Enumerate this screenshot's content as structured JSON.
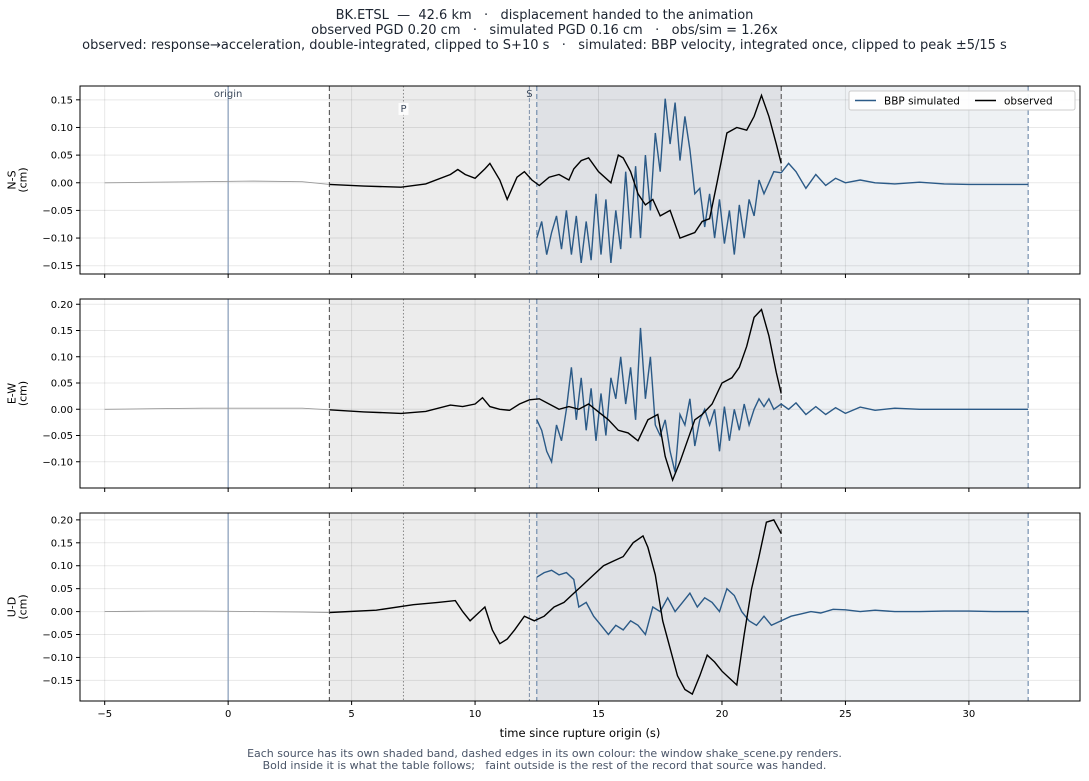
{
  "header": {
    "line1": "BK.ETSL  —  42.6 km   ·   displacement handed to the animation",
    "line2": "observed PGD 0.20 cm   ·   simulated PGD 0.16 cm   ·   obs/sim = 1.26x",
    "line3": "observed: response→acceleration, double-integrated, clipped to S+10 s   ·   simulated: BBP velocity, integrated once, clipped to peak ±5/15 s"
  },
  "footer": {
    "line1": "Each source has its own shaded band, dashed edges in its own colour: the window shake_scene.py renders.",
    "line2": "Bold inside it is what the table follows;   faint outside is the rest of the record that source was handed."
  },
  "colors": {
    "simulated": "#2b5a87",
    "observed": "#000000",
    "band_observed": "#ececec",
    "band_simulated": "#eef1f4",
    "band_overlap": "#dfe1e5",
    "origin_line": "#8fa3bd"
  },
  "chart_data": {
    "type": "line",
    "xlabel": "time since rupture origin (s)",
    "xlim": [
      -6,
      34.5
    ],
    "xticks": [
      -5,
      0,
      5,
      10,
      15,
      20,
      25,
      30
    ],
    "legend": {
      "placement": "top-right",
      "entries": [
        "BBP simulated",
        "observed"
      ]
    },
    "grid": true,
    "markers": {
      "origin": {
        "t": 0,
        "label": "origin"
      },
      "P": {
        "t": 7.1,
        "label": "P"
      },
      "S": {
        "t": 12.2,
        "label": "S"
      }
    },
    "windows": {
      "observed": [
        4.1,
        22.4
      ],
      "simulated": [
        12.5,
        32.4
      ]
    },
    "panels": [
      {
        "ylabel": "N-S\n(cm)",
        "ylim": [
          -0.165,
          0.175
        ],
        "yticks": [
          -0.15,
          -0.1,
          -0.05,
          0.0,
          0.05,
          0.1,
          0.15
        ],
        "observed": {
          "t": [
            -5,
            -3,
            -1,
            1,
            3,
            4.1,
            5.5,
            7,
            8,
            9,
            9.3,
            9.6,
            10,
            10.4,
            10.6,
            11,
            11.3,
            11.7,
            12,
            12.3,
            12.6,
            13,
            13.4,
            13.8,
            14,
            14.3,
            14.6,
            15,
            15.5,
            15.8,
            16,
            16.3,
            16.6,
            16.9,
            17.2,
            17.5,
            17.9,
            18.3,
            18.6,
            18.9,
            19.2,
            19.5,
            19.8,
            20.2,
            20.6,
            21,
            21.3,
            21.6,
            21.9,
            22.2,
            22.4
          ],
          "y": [
            0,
            0.001,
            0.002,
            0.003,
            0.002,
            -0.003,
            -0.006,
            -0.008,
            -0.002,
            0.015,
            0.024,
            0.015,
            0.008,
            0.025,
            0.035,
            0.005,
            -0.03,
            0.01,
            0.02,
            0.005,
            -0.005,
            0.01,
            0.015,
            0.005,
            0.025,
            0.04,
            0.045,
            0.02,
            0.0,
            0.05,
            0.045,
            0.02,
            -0.02,
            -0.04,
            -0.03,
            -0.06,
            -0.05,
            -0.1,
            -0.095,
            -0.09,
            -0.07,
            -0.065,
            0.0,
            0.09,
            0.1,
            0.095,
            0.12,
            0.158,
            0.12,
            0.07,
            0.035
          ]
        },
        "simulated": {
          "t": [
            12.5,
            12.7,
            12.9,
            13.1,
            13.3,
            13.5,
            13.7,
            13.9,
            14.1,
            14.3,
            14.5,
            14.7,
            14.9,
            15.1,
            15.3,
            15.5,
            15.7,
            15.9,
            16.1,
            16.3,
            16.5,
            16.7,
            16.9,
            17.1,
            17.3,
            17.5,
            17.7,
            17.9,
            18.1,
            18.3,
            18.5,
            18.7,
            18.9,
            19.1,
            19.3,
            19.5,
            19.7,
            19.9,
            20.1,
            20.3,
            20.5,
            20.7,
            20.9,
            21.1,
            21.3,
            21.5,
            21.7,
            21.9,
            22.1,
            22.4,
            22.7,
            23,
            23.4,
            23.8,
            24.2,
            24.6,
            25,
            25.6,
            26.2,
            27,
            28,
            29,
            30,
            31,
            32,
            32.4
          ],
          "y": [
            -0.1,
            -0.07,
            -0.13,
            -0.09,
            -0.06,
            -0.12,
            -0.05,
            -0.13,
            -0.06,
            -0.145,
            -0.07,
            -0.14,
            -0.02,
            -0.13,
            -0.03,
            -0.145,
            -0.05,
            -0.12,
            0.02,
            -0.1,
            0.03,
            -0.1,
            0.05,
            -0.05,
            0.09,
            0.02,
            0.152,
            0.07,
            0.145,
            0.04,
            0.12,
            0.06,
            -0.02,
            -0.01,
            -0.08,
            -0.02,
            -0.1,
            -0.03,
            -0.11,
            -0.05,
            -0.13,
            -0.04,
            -0.1,
            -0.03,
            -0.06,
            0.005,
            -0.02,
            0.0,
            0.02,
            0.018,
            0.035,
            0.02,
            -0.01,
            0.015,
            -0.005,
            0.008,
            0.0,
            0.005,
            0.0,
            -0.002,
            0.001,
            -0.002,
            -0.003,
            -0.003,
            -0.003,
            -0.003
          ]
        }
      },
      {
        "ylabel": "E-W\n(cm)",
        "ylim": [
          -0.15,
          0.21
        ],
        "yticks": [
          -0.1,
          -0.05,
          0.0,
          0.05,
          0.1,
          0.15,
          0.2
        ],
        "observed": {
          "t": [
            -5,
            -3,
            -1,
            1,
            3,
            4.1,
            5.5,
            7,
            8,
            9,
            9.5,
            10,
            10.3,
            10.6,
            11,
            11.4,
            11.8,
            12.2,
            12.6,
            13,
            13.4,
            13.8,
            14.2,
            14.6,
            15,
            15.4,
            15.8,
            16.2,
            16.6,
            17,
            17.4,
            17.7,
            18,
            18.3,
            18.6,
            18.9,
            19.2,
            19.6,
            20,
            20.4,
            20.7,
            21,
            21.3,
            21.6,
            21.9,
            22.2,
            22.4
          ],
          "y": [
            0,
            0.001,
            0.002,
            0.002,
            0.002,
            -0.001,
            -0.005,
            -0.008,
            -0.004,
            0.008,
            0.005,
            0.01,
            0.022,
            0.005,
            0.0,
            -0.002,
            0.01,
            0.018,
            0.02,
            0.01,
            0.0,
            0.005,
            0.0,
            0.01,
            -0.005,
            -0.02,
            -0.04,
            -0.045,
            -0.06,
            -0.02,
            -0.01,
            -0.09,
            -0.135,
            -0.1,
            -0.06,
            -0.02,
            -0.01,
            0.01,
            0.05,
            0.06,
            0.08,
            0.12,
            0.175,
            0.19,
            0.14,
            0.07,
            0.03
          ]
        },
        "simulated": {
          "t": [
            12.5,
            12.7,
            12.9,
            13.1,
            13.3,
            13.5,
            13.7,
            13.9,
            14.1,
            14.3,
            14.5,
            14.7,
            14.9,
            15.1,
            15.3,
            15.5,
            15.7,
            15.9,
            16.1,
            16.3,
            16.5,
            16.7,
            16.9,
            17.1,
            17.3,
            17.5,
            17.7,
            17.9,
            18.1,
            18.3,
            18.5,
            18.7,
            18.9,
            19.1,
            19.3,
            19.5,
            19.7,
            19.9,
            20.1,
            20.3,
            20.5,
            20.7,
            20.9,
            21.1,
            21.3,
            21.5,
            21.7,
            21.9,
            22.1,
            22.4,
            22.7,
            23,
            23.4,
            23.8,
            24.2,
            24.6,
            25,
            25.6,
            26.2,
            27,
            28,
            29,
            30,
            31,
            32,
            32.4
          ],
          "y": [
            -0.02,
            -0.04,
            -0.08,
            -0.1,
            -0.03,
            -0.06,
            0.0,
            0.08,
            -0.02,
            0.06,
            -0.04,
            0.04,
            -0.06,
            0.03,
            -0.05,
            0.06,
            0.02,
            0.1,
            0.01,
            0.08,
            -0.02,
            0.155,
            0.02,
            0.1,
            -0.03,
            -0.05,
            -0.02,
            -0.08,
            -0.12,
            -0.01,
            -0.03,
            0.02,
            -0.07,
            -0.02,
            0.0,
            -0.03,
            0.0,
            -0.08,
            0.005,
            -0.06,
            0.0,
            -0.04,
            0.01,
            -0.03,
            0.0,
            0.02,
            0.005,
            0.02,
            0.0,
            0.01,
            0.0,
            0.012,
            -0.01,
            0.005,
            -0.01,
            0.003,
            -0.008,
            0.004,
            -0.002,
            0.002,
            0.0,
            0.0,
            0.0,
            0.0,
            0.0,
            0.0
          ]
        }
      },
      {
        "ylabel": "U-D\n(cm)",
        "ylim": [
          -0.195,
          0.215
        ],
        "yticks": [
          -0.15,
          -0.1,
          -0.05,
          0.0,
          0.05,
          0.1,
          0.15,
          0.2
        ],
        "observed": {
          "t": [
            -5,
            -3,
            -1,
            1,
            3,
            4.1,
            6,
            7.5,
            8.5,
            9.2,
            9.5,
            9.8,
            10.1,
            10.4,
            10.7,
            11,
            11.3,
            11.6,
            12,
            12.4,
            12.8,
            13.2,
            13.6,
            14,
            14.4,
            14.8,
            15.2,
            15.6,
            16,
            16.4,
            16.8,
            17,
            17.3,
            17.6,
            17.9,
            18.2,
            18.5,
            18.8,
            19.1,
            19.4,
            19.7,
            20,
            20.3,
            20.6,
            20.9,
            21.2,
            21.5,
            21.8,
            22.1,
            22.4
          ],
          "y": [
            0,
            0.001,
            0.001,
            0.0,
            -0.001,
            -0.002,
            0.003,
            0.015,
            0.02,
            0.024,
            0.0,
            -0.02,
            -0.005,
            0.01,
            -0.04,
            -0.07,
            -0.06,
            -0.04,
            -0.01,
            -0.02,
            -0.01,
            0.01,
            0.02,
            0.04,
            0.06,
            0.08,
            0.1,
            0.11,
            0.12,
            0.15,
            0.165,
            0.14,
            0.08,
            -0.02,
            -0.08,
            -0.14,
            -0.17,
            -0.18,
            -0.14,
            -0.095,
            -0.11,
            -0.13,
            -0.145,
            -0.16,
            -0.05,
            0.05,
            0.12,
            0.195,
            0.2,
            0.17
          ]
        },
        "simulated": {
          "t": [
            12.5,
            12.8,
            13.1,
            13.4,
            13.7,
            14,
            14.2,
            14.5,
            14.8,
            15.1,
            15.4,
            15.7,
            16,
            16.3,
            16.6,
            16.9,
            17.2,
            17.5,
            17.8,
            18.1,
            18.4,
            18.7,
            19,
            19.3,
            19.6,
            19.9,
            20.2,
            20.5,
            20.8,
            21.1,
            21.4,
            21.7,
            22,
            22.4,
            22.8,
            23.2,
            23.6,
            24,
            24.5,
            25,
            25.6,
            26.2,
            27,
            28,
            29,
            30,
            31,
            32,
            32.4
          ],
          "y": [
            0.075,
            0.085,
            0.09,
            0.08,
            0.085,
            0.07,
            0.01,
            0.02,
            -0.01,
            -0.03,
            -0.05,
            -0.03,
            -0.04,
            -0.02,
            -0.03,
            -0.05,
            0.01,
            0.0,
            0.03,
            0.0,
            0.02,
            0.04,
            0.01,
            0.03,
            0.02,
            0.0,
            0.05,
            0.035,
            0.0,
            -0.02,
            -0.03,
            -0.01,
            -0.03,
            -0.02,
            -0.01,
            -0.005,
            0.0,
            -0.003,
            0.005,
            0.004,
            0.0,
            0.003,
            0.0,
            0.0,
            0.001,
            0.001,
            0.0,
            0.0,
            0.0
          ]
        }
      }
    ]
  }
}
